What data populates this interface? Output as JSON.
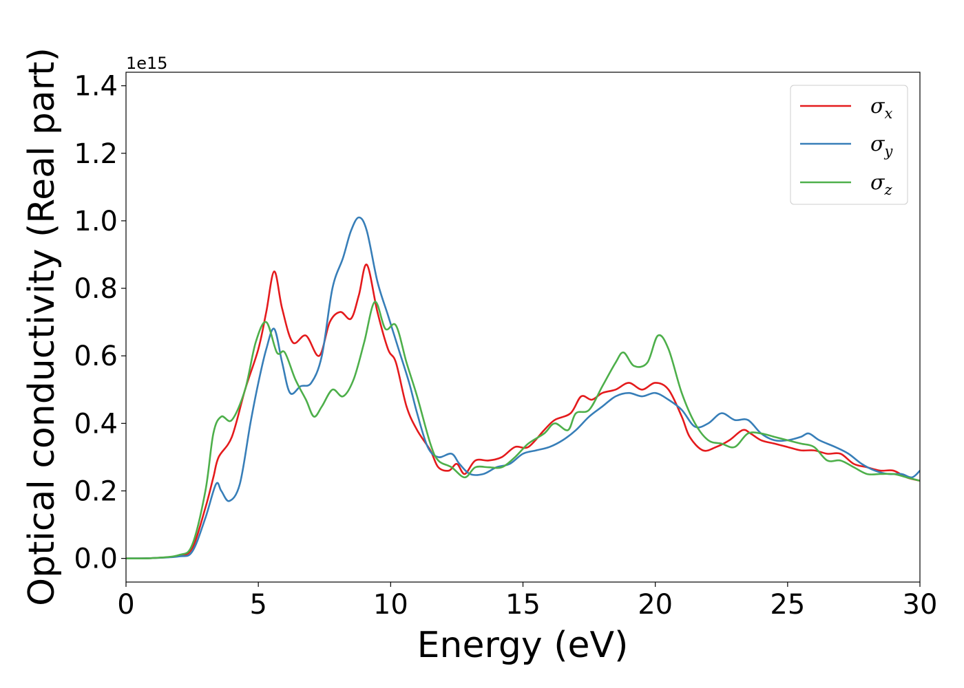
{
  "chart_data": {
    "type": "line",
    "xlabel": "Energy (eV)",
    "ylabel": "Optical conductivity (Real part)",
    "y_offset_label": "1e15",
    "xlim": [
      0,
      30
    ],
    "ylim": [
      -0.07,
      1.44
    ],
    "x_ticks": [
      0,
      5,
      10,
      15,
      20,
      25,
      30
    ],
    "x_tick_labels": [
      "0",
      "5",
      "10",
      "15",
      "20",
      "25",
      "30"
    ],
    "y_ticks": [
      0.0,
      0.2,
      0.4,
      0.6,
      0.8,
      1.0,
      1.2,
      1.4
    ],
    "y_tick_labels": [
      "0.0",
      "0.2",
      "0.4",
      "0.6",
      "0.8",
      "1.0",
      "1.2",
      "1.4"
    ],
    "grid": false,
    "legend_position": "top-right",
    "series": [
      {
        "name": "σx",
        "symbol": "σ",
        "subscript": "x",
        "color": "#e41a1c",
        "points": [
          [
            0,
            0
          ],
          [
            1,
            0.001
          ],
          [
            2,
            0.008
          ],
          [
            2.5,
            0.03
          ],
          [
            3,
            0.15
          ],
          [
            3.3,
            0.24
          ],
          [
            3.5,
            0.3
          ],
          [
            4.0,
            0.36
          ],
          [
            4.5,
            0.5
          ],
          [
            5.0,
            0.62
          ],
          [
            5.3,
            0.73
          ],
          [
            5.6,
            0.85
          ],
          [
            5.9,
            0.74
          ],
          [
            6.3,
            0.64
          ],
          [
            6.8,
            0.66
          ],
          [
            7.3,
            0.6
          ],
          [
            7.7,
            0.7
          ],
          [
            8.1,
            0.73
          ],
          [
            8.5,
            0.71
          ],
          [
            8.8,
            0.78
          ],
          [
            9.1,
            0.87
          ],
          [
            9.5,
            0.73
          ],
          [
            9.9,
            0.62
          ],
          [
            10.2,
            0.58
          ],
          [
            10.6,
            0.45
          ],
          [
            11.0,
            0.38
          ],
          [
            11.5,
            0.32
          ],
          [
            11.8,
            0.27
          ],
          [
            12.2,
            0.26
          ],
          [
            12.5,
            0.28
          ],
          [
            12.8,
            0.25
          ],
          [
            13.2,
            0.29
          ],
          [
            13.7,
            0.29
          ],
          [
            14.2,
            0.3
          ],
          [
            14.7,
            0.33
          ],
          [
            15.2,
            0.33
          ],
          [
            15.8,
            0.38
          ],
          [
            16.2,
            0.41
          ],
          [
            16.8,
            0.43
          ],
          [
            17.2,
            0.48
          ],
          [
            17.6,
            0.47
          ],
          [
            18.0,
            0.49
          ],
          [
            18.5,
            0.5
          ],
          [
            19.0,
            0.52
          ],
          [
            19.5,
            0.5
          ],
          [
            20.0,
            0.52
          ],
          [
            20.5,
            0.5
          ],
          [
            21.0,
            0.42
          ],
          [
            21.3,
            0.36
          ],
          [
            21.8,
            0.32
          ],
          [
            22.3,
            0.33
          ],
          [
            22.8,
            0.35
          ],
          [
            23.3,
            0.38
          ],
          [
            23.6,
            0.37
          ],
          [
            24.0,
            0.35
          ],
          [
            24.5,
            0.34
          ],
          [
            25.0,
            0.33
          ],
          [
            25.5,
            0.32
          ],
          [
            26.0,
            0.32
          ],
          [
            26.5,
            0.31
          ],
          [
            27.0,
            0.31
          ],
          [
            27.5,
            0.28
          ],
          [
            28.0,
            0.27
          ],
          [
            28.5,
            0.26
          ],
          [
            29.0,
            0.26
          ],
          [
            29.5,
            0.24
          ],
          [
            30.0,
            0.23
          ]
        ]
      },
      {
        "name": "σy",
        "symbol": "σ",
        "subscript": "y",
        "color": "#377eb8",
        "points": [
          [
            0,
            0
          ],
          [
            1,
            0.001
          ],
          [
            2,
            0.006
          ],
          [
            2.5,
            0.02
          ],
          [
            3,
            0.12
          ],
          [
            3.4,
            0.22
          ],
          [
            3.6,
            0.2
          ],
          [
            3.9,
            0.17
          ],
          [
            4.3,
            0.22
          ],
          [
            4.7,
            0.4
          ],
          [
            5.0,
            0.52
          ],
          [
            5.3,
            0.62
          ],
          [
            5.6,
            0.68
          ],
          [
            5.9,
            0.58
          ],
          [
            6.2,
            0.49
          ],
          [
            6.6,
            0.51
          ],
          [
            7.0,
            0.52
          ],
          [
            7.4,
            0.6
          ],
          [
            7.8,
            0.8
          ],
          [
            8.2,
            0.89
          ],
          [
            8.5,
            0.97
          ],
          [
            8.8,
            1.01
          ],
          [
            9.1,
            0.97
          ],
          [
            9.5,
            0.82
          ],
          [
            9.9,
            0.72
          ],
          [
            10.3,
            0.62
          ],
          [
            10.7,
            0.52
          ],
          [
            11.0,
            0.43
          ],
          [
            11.4,
            0.33
          ],
          [
            11.8,
            0.3
          ],
          [
            12.3,
            0.31
          ],
          [
            12.6,
            0.28
          ],
          [
            13.0,
            0.25
          ],
          [
            13.5,
            0.25
          ],
          [
            14.0,
            0.27
          ],
          [
            14.5,
            0.28
          ],
          [
            15.0,
            0.31
          ],
          [
            15.5,
            0.32
          ],
          [
            16.0,
            0.33
          ],
          [
            16.5,
            0.35
          ],
          [
            17.0,
            0.38
          ],
          [
            17.5,
            0.42
          ],
          [
            18.0,
            0.45
          ],
          [
            18.5,
            0.48
          ],
          [
            19.0,
            0.49
          ],
          [
            19.5,
            0.48
          ],
          [
            20.0,
            0.49
          ],
          [
            20.5,
            0.47
          ],
          [
            21.0,
            0.44
          ],
          [
            21.5,
            0.39
          ],
          [
            22.0,
            0.4
          ],
          [
            22.5,
            0.43
          ],
          [
            23.0,
            0.41
          ],
          [
            23.5,
            0.41
          ],
          [
            24.0,
            0.37
          ],
          [
            24.5,
            0.35
          ],
          [
            25.0,
            0.35
          ],
          [
            25.5,
            0.36
          ],
          [
            25.8,
            0.37
          ],
          [
            26.2,
            0.35
          ],
          [
            26.8,
            0.33
          ],
          [
            27.3,
            0.31
          ],
          [
            27.8,
            0.28
          ],
          [
            28.3,
            0.26
          ],
          [
            28.8,
            0.25
          ],
          [
            29.3,
            0.25
          ],
          [
            29.7,
            0.24
          ],
          [
            30.0,
            0.26
          ]
        ]
      },
      {
        "name": "σz",
        "symbol": "σ",
        "subscript": "z",
        "color": "#4daf4a",
        "points": [
          [
            0,
            0
          ],
          [
            1,
            0.001
          ],
          [
            2,
            0.01
          ],
          [
            2.5,
            0.04
          ],
          [
            3,
            0.2
          ],
          [
            3.3,
            0.37
          ],
          [
            3.6,
            0.42
          ],
          [
            4.0,
            0.41
          ],
          [
            4.5,
            0.5
          ],
          [
            4.9,
            0.64
          ],
          [
            5.3,
            0.7
          ],
          [
            5.7,
            0.61
          ],
          [
            6.0,
            0.61
          ],
          [
            6.4,
            0.53
          ],
          [
            6.8,
            0.47
          ],
          [
            7.1,
            0.42
          ],
          [
            7.4,
            0.45
          ],
          [
            7.8,
            0.5
          ],
          [
            8.2,
            0.48
          ],
          [
            8.6,
            0.53
          ],
          [
            9.0,
            0.64
          ],
          [
            9.4,
            0.76
          ],
          [
            9.8,
            0.68
          ],
          [
            10.2,
            0.69
          ],
          [
            10.6,
            0.58
          ],
          [
            11.0,
            0.48
          ],
          [
            11.5,
            0.34
          ],
          [
            11.8,
            0.29
          ],
          [
            12.3,
            0.27
          ],
          [
            12.8,
            0.24
          ],
          [
            13.2,
            0.27
          ],
          [
            13.7,
            0.27
          ],
          [
            14.2,
            0.27
          ],
          [
            14.7,
            0.3
          ],
          [
            15.2,
            0.34
          ],
          [
            15.8,
            0.37
          ],
          [
            16.2,
            0.4
          ],
          [
            16.7,
            0.38
          ],
          [
            17.0,
            0.43
          ],
          [
            17.5,
            0.44
          ],
          [
            18.0,
            0.51
          ],
          [
            18.5,
            0.58
          ],
          [
            18.8,
            0.61
          ],
          [
            19.2,
            0.57
          ],
          [
            19.7,
            0.58
          ],
          [
            20.1,
            0.66
          ],
          [
            20.5,
            0.62
          ],
          [
            21.0,
            0.49
          ],
          [
            21.5,
            0.4
          ],
          [
            22.0,
            0.35
          ],
          [
            22.5,
            0.34
          ],
          [
            23.0,
            0.33
          ],
          [
            23.5,
            0.37
          ],
          [
            24.0,
            0.37
          ],
          [
            24.5,
            0.36
          ],
          [
            25.0,
            0.35
          ],
          [
            25.5,
            0.34
          ],
          [
            26.0,
            0.33
          ],
          [
            26.5,
            0.29
          ],
          [
            27.0,
            0.29
          ],
          [
            27.5,
            0.27
          ],
          [
            28.0,
            0.25
          ],
          [
            28.5,
            0.25
          ],
          [
            29.0,
            0.25
          ],
          [
            29.5,
            0.24
          ],
          [
            30.0,
            0.23
          ]
        ]
      }
    ]
  }
}
